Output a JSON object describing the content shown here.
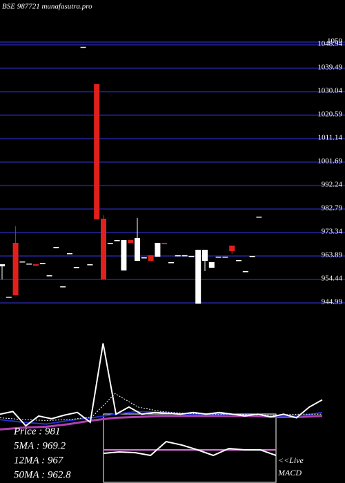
{
  "chart_data": {
    "type": "candlestick",
    "title": "BSE 987721 munafasutra.pro",
    "ylim": [
      944.99,
      1050
    ],
    "yticks": [
      1050,
      1048.94,
      1039.49,
      1030.04,
      1020.59,
      1011.14,
      1001.69,
      992.24,
      982.79,
      973.34,
      963.89,
      954.44,
      944.99
    ],
    "grid": true,
    "grid_color": "#1c1c78",
    "up_color": "#ffffff",
    "down_color": "#e0211b",
    "open": [
      959.72,
      947.21,
      969.17,
      961.67,
      960.83,
      960.55,
      961.11,
      956.11,
      967.5,
      951.66,
      965.0,
      959.44,
      1048.11,
      960.55,
      1033.1,
      978.9,
      969.17,
      970.28,
      958.05,
      970.28,
      961.94,
      963.33,
      964.17,
      963.61,
      969.17,
      961.39,
      964.17,
      964.17,
      963.89,
      944.71,
      961.94,
      959.16,
      963.61,
      963.61,
      968.06,
      962.22,
      957.78,
      963.89,
      979.73
    ],
    "high": [
      960.55,
      947.49,
      975.84,
      961.67,
      960.83,
      960.55,
      961.11,
      956.11,
      967.5,
      951.66,
      965.0,
      959.44,
      1048.11,
      960.55,
      1033.1,
      980.29,
      969.17,
      970.28,
      970.28,
      970.28,
      979.18,
      963.33,
      964.17,
      969.17,
      969.17,
      961.39,
      964.17,
      964.17,
      963.89,
      966.39,
      966.39,
      961.39,
      963.61,
      963.61,
      968.06,
      962.22,
      957.78,
      963.89,
      979.73
    ],
    "low": [
      954.44,
      947.21,
      948.05,
      961.67,
      960.83,
      960.0,
      961.11,
      956.11,
      967.5,
      951.66,
      965.0,
      959.44,
      1048.11,
      960.55,
      978.62,
      954.44,
      969.17,
      970.28,
      958.05,
      969.17,
      961.94,
      963.33,
      961.94,
      963.61,
      968.61,
      961.39,
      964.17,
      964.17,
      963.89,
      944.71,
      957.78,
      959.16,
      963.61,
      963.61,
      964.72,
      962.22,
      957.78,
      963.89,
      979.73
    ],
    "close": [
      960.55,
      947.49,
      948.05,
      961.67,
      960.83,
      960.0,
      961.11,
      956.11,
      967.5,
      951.66,
      965.0,
      959.44,
      1048.11,
      960.55,
      978.62,
      954.44,
      969.17,
      970.28,
      970.28,
      969.17,
      971.12,
      963.33,
      961.94,
      969.17,
      968.61,
      961.39,
      964.17,
      964.17,
      963.89,
      966.39,
      966.39,
      961.39,
      963.61,
      963.61,
      965.84,
      962.22,
      957.78,
      963.89,
      979.73
    ],
    "indicator": {
      "ylim": [
        0,
        100
      ],
      "series": [
        {
          "color": "#b040b0",
          "width": 3,
          "values": [
            2,
            4,
            5,
            8,
            12,
            15,
            16,
            17,
            17,
            17,
            17,
            17,
            16,
            16,
            17
          ]
        },
        {
          "color": "#2030d0",
          "width": 2,
          "values": [
            13,
            10,
            8,
            12,
            15,
            19,
            22,
            21,
            19,
            19,
            18,
            18,
            17,
            17,
            21
          ]
        },
        {
          "color": "#ffffff",
          "width": 1,
          "dash": "2,2",
          "values": [
            15,
            13,
            12,
            13,
            16,
            42,
            27,
            22,
            20,
            19,
            19,
            18,
            18,
            19,
            19
          ]
        },
        {
          "color": "#ffffff",
          "width": 2,
          "values": [
            19,
            22,
            6,
            17,
            14,
            18,
            21,
            10,
            98,
            19,
            27,
            19,
            21,
            20,
            19,
            21,
            19,
            21,
            19,
            17,
            19,
            16,
            19,
            15,
            27,
            35
          ]
        }
      ]
    },
    "macd": {
      "ylim": [
        0,
        100
      ],
      "series": [
        {
          "color": "#e070e0",
          "width": 2,
          "values": [
            48,
            48
          ]
        },
        {
          "color": "#ffffff",
          "width": 2,
          "values": [
            43,
            45,
            44,
            40,
            60,
            55,
            48,
            40,
            50,
            48,
            48,
            40
          ]
        }
      ]
    },
    "info": [
      "Price   : 981",
      "5MA : 969.2",
      "12MA : 967",
      "50MA : 962.8"
    ],
    "macd_label": [
      "<<Live",
      "MACD"
    ]
  }
}
